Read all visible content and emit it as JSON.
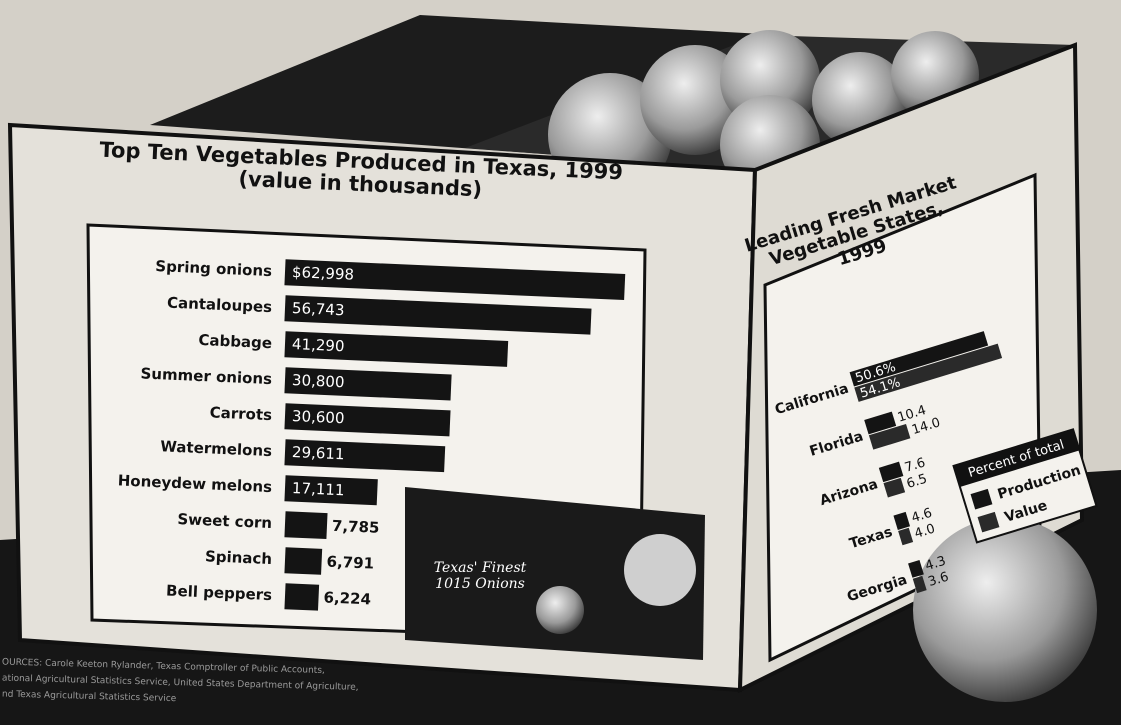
{
  "chart_data": [
    {
      "type": "bar",
      "orientation": "horizontal",
      "title": "Top Ten Vegetables Produced in Texas, 1999",
      "subtitle": "(value in thousands)",
      "categories": [
        "Spring onions",
        "Cantaloupes",
        "Cabbage",
        "Summer onions",
        "Carrots",
        "Watermelons",
        "Honeydew melons",
        "Sweet corn",
        "Spinach",
        "Bell peppers"
      ],
      "values": [
        62998,
        56743,
        41290,
        30800,
        30600,
        29611,
        17111,
        7785,
        6791,
        6224
      ],
      "value_labels": [
        "$62,998",
        "56,743",
        "41,290",
        "30,800",
        "30,600",
        "29,611",
        "17,111",
        "7,785",
        "6,791",
        "6,224"
      ],
      "color": "#141414"
    },
    {
      "type": "grouped-bar",
      "orientation": "horizontal",
      "title": "Leading Fresh Market Vegetable States, 1999",
      "legend_title": "Percent of total",
      "categories": [
        "California",
        "Florida",
        "Arizona",
        "Texas",
        "Georgia"
      ],
      "series": [
        {
          "name": "Production",
          "color": "#141414",
          "values": [
            50.6,
            10.4,
            7.6,
            4.6,
            4.3
          ],
          "value_labels": [
            "50.6%",
            "10.4",
            "7.6",
            "4.6",
            "4.3"
          ]
        },
        {
          "name": "Value",
          "color": "#2a2a2a",
          "values": [
            54.1,
            14.0,
            6.5,
            4.0,
            3.6
          ],
          "value_labels": [
            "54.1%",
            "14.0",
            "6.5",
            "4.0",
            "3.6"
          ]
        }
      ]
    }
  ],
  "photo_caption": "Texas' Finest 1015 Onions",
  "sources": [
    "OURCES: Carole Keeton Rylander, Texas Comptroller of Public Accounts,",
    "ational Agricultural Statistics Service, United States Department of Agriculture,",
    "nd Texas Agricultural Statistics Service"
  ]
}
